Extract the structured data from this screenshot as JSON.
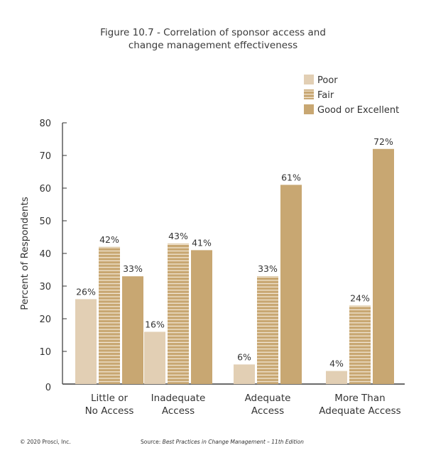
{
  "chart_data": {
    "type": "bar",
    "title_lines": [
      "Figure 10.7 - Correlation of sponsor access and",
      "change management effectiveness"
    ],
    "xlabel": "",
    "ylabel": "Percent of Respondents",
    "ylim": [
      0,
      80
    ],
    "yticks": [
      0,
      10,
      20,
      30,
      40,
      50,
      60,
      70,
      80
    ],
    "categories": [
      [
        "Little or",
        "No Access"
      ],
      [
        "Inadequate",
        "Access"
      ],
      [
        "Adequate",
        "Access"
      ],
      [
        "More Than",
        "Adequate Access"
      ]
    ],
    "series": [
      {
        "name": "Poor",
        "color": "#e2cfb4",
        "pattern": "solid",
        "values": [
          26,
          16,
          6,
          4
        ]
      },
      {
        "name": "Fair",
        "color": "#c8a772",
        "pattern": "striped",
        "values": [
          42,
          43,
          33,
          24
        ]
      },
      {
        "name": "Good or Excellent",
        "color": "#c8a772",
        "pattern": "solid",
        "values": [
          33,
          41,
          61,
          72
        ]
      }
    ],
    "value_suffix": "%",
    "legend": "top-right",
    "grid": false
  },
  "footer": {
    "copyright": "© 2020 Prosci, Inc.",
    "source_prefix": "Source: ",
    "source_title": "Best Practices in Change Management – 11th Edition"
  }
}
